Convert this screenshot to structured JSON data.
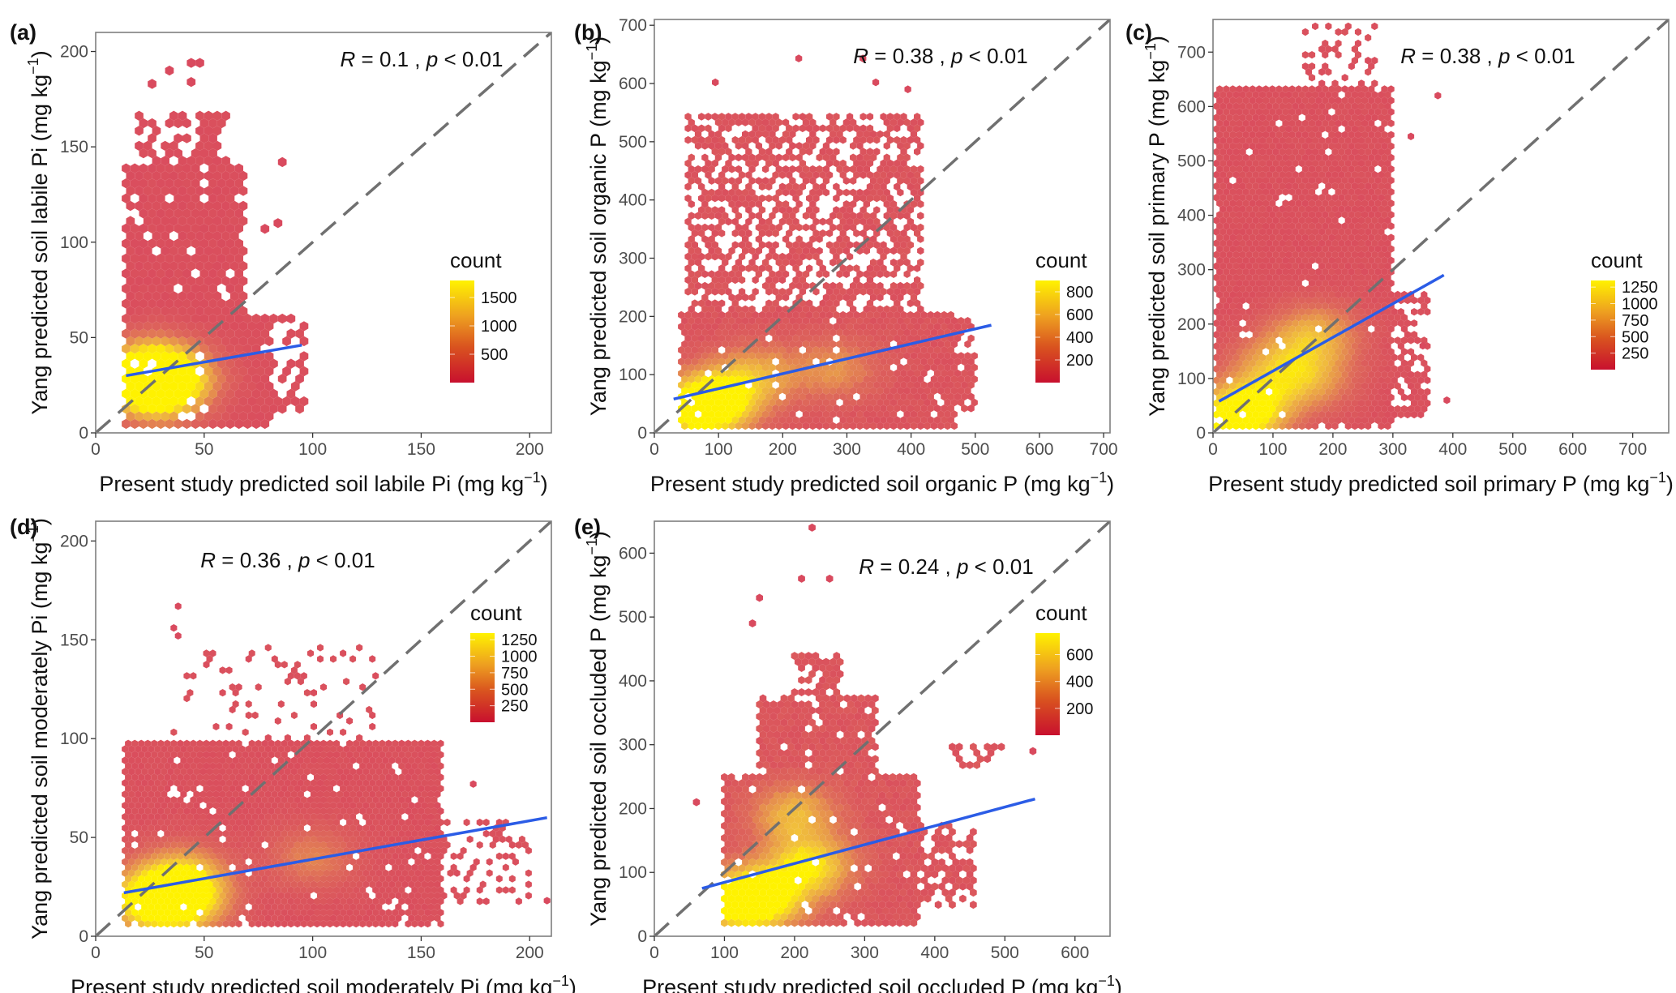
{
  "figure": {
    "colors": {
      "low": "#c8102e",
      "mid1": "#d9485d",
      "mid2": "#e07a3a",
      "high": "#fff200",
      "hex_base": "#d94a5e",
      "regression_line": "#2b5ce6",
      "identity_line": "#707070",
      "frame": "#7f7f7f"
    }
  },
  "chart_data": [
    {
      "panel": "(a)",
      "type": "hexbin",
      "title": "",
      "xlabel": "Present study predicted soil labile Pi (mg kg",
      "ylabel": "Yang predicted soil labile Pi (mg kg",
      "unit_superscript": "−1",
      "xlim": [
        0,
        210
      ],
      "ylim": [
        0,
        210
      ],
      "xticks": [
        0,
        50,
        100,
        150,
        200
      ],
      "yticks": [
        0,
        50,
        100,
        150,
        200
      ],
      "stat_text": {
        "r_sym": "R",
        "r_val": " = 0.1 , ",
        "p_sym": "p",
        "p_val": " < 0.01"
      },
      "legend": {
        "title": "count",
        "ticks": [
          500,
          1000,
          1500
        ],
        "max": 1800
      },
      "identity_line": {
        "from": [
          0,
          0
        ],
        "to": [
          210,
          210
        ]
      },
      "regression": {
        "x": [
          14,
          95
        ],
        "y": [
          30,
          46
        ]
      },
      "hex_size_x": 4.0,
      "regions": [
        {
          "xmin": 14,
          "xmax": 70,
          "ymin": 2,
          "ymax": 140,
          "density": 0.95
        },
        {
          "xmin": 14,
          "xmax": 80,
          "ymin": 2,
          "ymax": 60,
          "density": 0.95
        },
        {
          "xmin": 20,
          "xmax": 60,
          "ymin": 140,
          "ymax": 168,
          "density": 0.55
        },
        {
          "xmin": 60,
          "xmax": 96,
          "ymin": 10,
          "ymax": 60,
          "density": 0.45
        }
      ],
      "hotspots": [
        {
          "x": 24,
          "y": 26,
          "value": 1800
        },
        {
          "x": 26,
          "y": 35,
          "value": 1500
        },
        {
          "x": 30,
          "y": 20,
          "value": 1100
        },
        {
          "x": 40,
          "y": 30,
          "value": 700
        }
      ],
      "outliers": [
        [
          26,
          183
        ],
        [
          34,
          190
        ],
        [
          44,
          194
        ],
        [
          48,
          194
        ],
        [
          44,
          184
        ],
        [
          86,
          142
        ],
        [
          84,
          110
        ],
        [
          78,
          107
        ]
      ]
    },
    {
      "panel": "(b)",
      "type": "hexbin",
      "xlabel": "Present study predicted soil organic P (mg kg",
      "ylabel": "Yang predicted soil organic P (mg kg",
      "unit_superscript": "−1",
      "xlim": [
        0,
        710
      ],
      "ylim": [
        0,
        710
      ],
      "xticks": [
        0,
        100,
        200,
        300,
        400,
        500,
        600,
        700
      ],
      "yticks": [
        0,
        100,
        200,
        300,
        400,
        500,
        600,
        700
      ],
      "stat_text": {
        "r_sym": "R",
        "r_val": " = 0.38 , ",
        "p_sym": "p",
        "p_val": " < 0.01"
      },
      "legend": {
        "title": "count",
        "ticks": [
          200,
          400,
          600,
          800
        ],
        "max": 900
      },
      "identity_line": {
        "from": [
          0,
          0
        ],
        "to": [
          710,
          710
        ]
      },
      "regression": {
        "x": [
          30,
          525
        ],
        "y": [
          58,
          185
        ]
      },
      "hex_size_x": 10.5,
      "regions": [
        {
          "xmin": 40,
          "xmax": 470,
          "ymin": 10,
          "ymax": 205,
          "density": 0.97
        },
        {
          "xmin": 50,
          "xmax": 420,
          "ymin": 205,
          "ymax": 545,
          "density": 0.62
        },
        {
          "xmin": 400,
          "xmax": 500,
          "ymin": 40,
          "ymax": 200,
          "density": 0.7
        }
      ],
      "hotspots": [
        {
          "x": 70,
          "y": 40,
          "value": 900
        },
        {
          "x": 100,
          "y": 60,
          "value": 650
        },
        {
          "x": 160,
          "y": 100,
          "value": 450
        },
        {
          "x": 280,
          "y": 110,
          "value": 350
        }
      ],
      "outliers": [
        [
          95,
          602
        ],
        [
          225,
          643
        ],
        [
          325,
          643
        ],
        [
          345,
          602
        ],
        [
          395,
          590
        ]
      ]
    },
    {
      "panel": "(c)",
      "type": "hexbin",
      "xlabel": "Present study predicted soil primary P (mg kg",
      "ylabel": "Yang predicted soil primary P (mg kg",
      "unit_superscript": "−1",
      "xlim": [
        0,
        760
      ],
      "ylim": [
        0,
        760
      ],
      "xticks": [
        0,
        100,
        200,
        300,
        400,
        500,
        600,
        700
      ],
      "yticks": [
        0,
        100,
        200,
        300,
        400,
        500,
        600,
        700
      ],
      "stat_text": {
        "r_sym": "R",
        "r_val": " = 0.38 , ",
        "p_sym": "p",
        "p_val": " < 0.01"
      },
      "legend": {
        "title": "count",
        "ticks": [
          250,
          500,
          750,
          1000,
          1250
        ],
        "max": 1350
      },
      "identity_line": {
        "from": [
          0,
          0
        ],
        "to": [
          760,
          760
        ]
      },
      "regression": {
        "x": [
          10,
          385
        ],
        "y": [
          58,
          290
        ]
      },
      "hex_size_x": 11,
      "regions": [
        {
          "xmin": 5,
          "xmax": 300,
          "ymin": 10,
          "ymax": 640,
          "density": 0.97
        },
        {
          "xmin": 280,
          "xmax": 360,
          "ymin": 30,
          "ymax": 260,
          "density": 0.6
        },
        {
          "xmin": 150,
          "xmax": 270,
          "ymin": 640,
          "ymax": 750,
          "density": 0.35
        }
      ],
      "hotspots": [
        {
          "x": 25,
          "y": 15,
          "value": 1350
        },
        {
          "x": 70,
          "y": 55,
          "value": 1000
        },
        {
          "x": 170,
          "y": 180,
          "value": 800
        },
        {
          "x": 160,
          "y": 100,
          "value": 700
        },
        {
          "x": 100,
          "y": 130,
          "value": 550
        }
      ],
      "outliers": [
        [
          375,
          620
        ],
        [
          330,
          545
        ],
        [
          390,
          60
        ],
        [
          350,
          160
        ]
      ]
    },
    {
      "panel": "(d)",
      "type": "hexbin",
      "xlabel": "Present study predicted soil moderately Pi (mg kg",
      "ylabel": "Yang predicted soil moderately Pi (mg kg",
      "unit_superscript": "−1",
      "xlim": [
        0,
        210
      ],
      "ylim": [
        0,
        210
      ],
      "xticks": [
        0,
        50,
        100,
        150,
        200
      ],
      "yticks": [
        0,
        50,
        100,
        150,
        200
      ],
      "stat_text": {
        "r_sym": "R",
        "r_val": " = 0.36 , ",
        "p_sym": "p",
        "p_val": " < 0.01"
      },
      "legend": {
        "title": "count",
        "ticks": [
          250,
          500,
          750,
          1000,
          1250
        ],
        "max": 1350
      },
      "identity_line": {
        "from": [
          0,
          0
        ],
        "to": [
          210,
          210
        ]
      },
      "regression": {
        "x": [
          13,
          208
        ],
        "y": [
          22,
          60
        ]
      },
      "hex_size_x": 3.0,
      "regions": [
        {
          "xmin": 12,
          "xmax": 160,
          "ymin": 4,
          "ymax": 98,
          "density": 0.96
        },
        {
          "xmin": 155,
          "xmax": 200,
          "ymin": 15,
          "ymax": 60,
          "density": 0.3
        },
        {
          "xmin": 35,
          "xmax": 130,
          "ymin": 100,
          "ymax": 148,
          "density": 0.12
        }
      ],
      "hotspots": [
        {
          "x": 40,
          "y": 18,
          "value": 1350
        },
        {
          "x": 24,
          "y": 18,
          "value": 1250
        },
        {
          "x": 40,
          "y": 30,
          "value": 900
        },
        {
          "x": 100,
          "y": 40,
          "value": 450
        }
      ],
      "outliers": [
        [
          38,
          167
        ],
        [
          36,
          156
        ],
        [
          38,
          152
        ],
        [
          208,
          18
        ],
        [
          174,
          77
        ]
      ]
    },
    {
      "panel": "(e)",
      "type": "hexbin",
      "xlabel": "Present study predicted soil occluded P (mg kg",
      "ylabel": "Yang predicted soil occluded P (mg kg",
      "unit_superscript": "−1",
      "xlim": [
        0,
        650
      ],
      "ylim": [
        0,
        650
      ],
      "xticks": [
        0,
        100,
        200,
        300,
        400,
        500,
        600
      ],
      "yticks": [
        0,
        100,
        200,
        300,
        400,
        500,
        600
      ],
      "stat_text": {
        "r_sym": "R",
        "r_val": " = 0.24 , ",
        "p_sym": "p",
        "p_val": " < 0.01"
      },
      "legend": {
        "title": "count",
        "ticks": [
          200,
          400,
          600
        ],
        "max": 760
      },
      "identity_line": {
        "from": [
          0,
          0
        ],
        "to": [
          650,
          650
        ]
      },
      "regression": {
        "x": [
          68,
          543
        ],
        "y": [
          75,
          215
        ]
      },
      "hex_size_x": 10,
      "regions": [
        {
          "xmin": 100,
          "xmax": 380,
          "ymin": 15,
          "ymax": 250,
          "density": 0.96
        },
        {
          "xmin": 150,
          "xmax": 320,
          "ymin": 250,
          "ymax": 380,
          "density": 0.9
        },
        {
          "xmin": 200,
          "xmax": 270,
          "ymin": 380,
          "ymax": 440,
          "density": 0.75
        },
        {
          "xmin": 380,
          "xmax": 460,
          "ymin": 40,
          "ymax": 180,
          "density": 0.5
        },
        {
          "xmin": 420,
          "xmax": 510,
          "ymin": 260,
          "ymax": 300,
          "density": 0.45
        }
      ],
      "hotspots": [
        {
          "x": 120,
          "y": 55,
          "value": 760
        },
        {
          "x": 220,
          "y": 110,
          "value": 650
        },
        {
          "x": 200,
          "y": 190,
          "value": 450
        },
        {
          "x": 160,
          "y": 60,
          "value": 550
        }
      ],
      "outliers": [
        [
          225,
          640
        ],
        [
          210,
          560
        ],
        [
          250,
          560
        ],
        [
          150,
          530
        ],
        [
          140,
          490
        ],
        [
          60,
          210
        ],
        [
          540,
          290
        ]
      ]
    }
  ]
}
